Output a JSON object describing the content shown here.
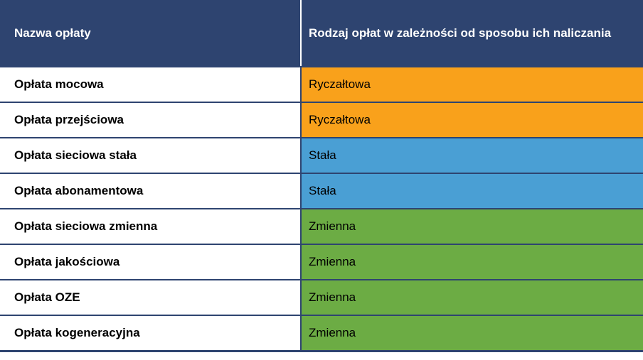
{
  "colors": {
    "header_bg": "#2E4470",
    "border": "#2E4470",
    "header_text": "#FFFFFF",
    "body_text": "#000000",
    "ryczaltowa": "#F9A11B",
    "stala": "#4A9FD4",
    "zmienna": "#6CAC44"
  },
  "table": {
    "header": {
      "col1": "Nazwa opłaty",
      "col2": "Rodzaj opłat w zależności od sposobu ich naliczania"
    },
    "rows": [
      {
        "name": "Opłata mocowa",
        "category": "Ryczałtowa",
        "color": "#F9A11B"
      },
      {
        "name": "Opłata przejściowa",
        "category": "Ryczałtowa",
        "color": "#F9A11B"
      },
      {
        "name": "Opłata sieciowa stała",
        "category": "Stała",
        "color": "#4A9FD4"
      },
      {
        "name": "Opłata abonamentowa",
        "category": "Stała",
        "color": "#4A9FD4"
      },
      {
        "name": "Opłata sieciowa zmienna",
        "category": "Zmienna",
        "color": "#6CAC44"
      },
      {
        "name": "Opłata jakościowa",
        "category": "Zmienna",
        "color": "#6CAC44"
      },
      {
        "name": "Opłata OZE",
        "category": "Zmienna",
        "color": "#6CAC44"
      },
      {
        "name": "Opłata kogeneracyjna",
        "category": "Zmienna",
        "color": "#6CAC44"
      }
    ]
  },
  "chart_data": {
    "type": "table",
    "title": "",
    "columns": [
      "Nazwa opłaty",
      "Rodzaj opłat w zależności od sposobu ich naliczania"
    ],
    "rows": [
      [
        "Opłata mocowa",
        "Ryczałtowa"
      ],
      [
        "Opłata przejściowa",
        "Ryczałtowa"
      ],
      [
        "Opłata sieciowa stała",
        "Stała"
      ],
      [
        "Opłata abonamentowa",
        "Stała"
      ],
      [
        "Opłata sieciowa zmienna",
        "Zmienna"
      ],
      [
        "Opłata jakościowa",
        "Zmienna"
      ],
      [
        "Opłata OZE",
        "Zmienna"
      ],
      [
        "Opłata kogeneracyjna",
        "Zmienna"
      ]
    ],
    "row_colors": [
      "#F9A11B",
      "#F9A11B",
      "#4A9FD4",
      "#4A9FD4",
      "#6CAC44",
      "#6CAC44",
      "#6CAC44",
      "#6CAC44"
    ],
    "legend_position": "none",
    "notes": "category column cells are color-coded by fee calculation type"
  }
}
